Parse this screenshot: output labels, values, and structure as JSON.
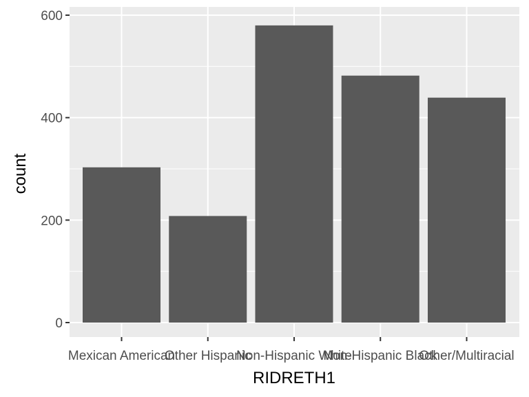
{
  "chart_data": {
    "type": "bar",
    "xlabel": "RIDRETH1",
    "ylabel": "count",
    "categories": [
      "Mexican American",
      "Other Hispanic",
      "Non-Hispanic White",
      "Non-Hispanic Black",
      "Other/Multiracial"
    ],
    "values": [
      303,
      208,
      580,
      482,
      439
    ],
    "ylim": [
      0,
      600
    ],
    "yticks": [
      0,
      200,
      400,
      600
    ],
    "grid": true,
    "legend": "none",
    "colors": {
      "panel": "#ebebeb",
      "bar": "#595959",
      "grid": "#ffffff",
      "tick_text": "#4d4d4d",
      "axis_title": "#000000"
    }
  }
}
